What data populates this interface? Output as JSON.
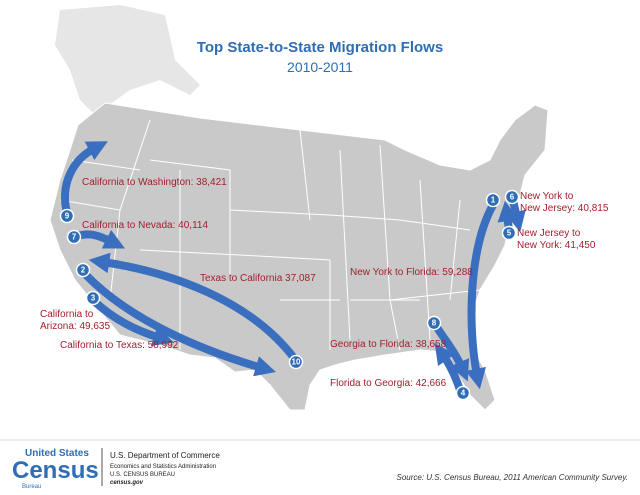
{
  "title": "Top State-to-State Migration Flows",
  "subtitle": "2010-2011",
  "flows": [
    {
      "rank": "1",
      "lines": [
        "New York to Florida: 59,288"
      ]
    },
    {
      "rank": "2",
      "lines": [
        "California to Texas: 58,992"
      ]
    },
    {
      "rank": "3",
      "lines": [
        "California to",
        "Arizona: 49,635"
      ]
    },
    {
      "rank": "4",
      "lines": [
        "Florida to Georgia: 42,666"
      ]
    },
    {
      "rank": "5",
      "lines": [
        "New Jersey to",
        "New York: 41,450"
      ]
    },
    {
      "rank": "6",
      "lines": [
        "New York to",
        "New Jersey: 40,815"
      ]
    },
    {
      "rank": "7",
      "lines": [
        "California to Nevada: 40,114"
      ]
    },
    {
      "rank": "8",
      "lines": [
        "Georgia to Florida: 38,658"
      ]
    },
    {
      "rank": "9",
      "lines": [
        "California to Washington: 38,421"
      ]
    },
    {
      "rank": "10",
      "lines": [
        "Texas to California 37,087"
      ]
    }
  ],
  "footer": {
    "logo": [
      "United States",
      "Census",
      "Bureau"
    ],
    "agency": [
      "U.S. Department of Commerce",
      "Economics and Statistics Administration",
      "U.S. CENSUS BUREAU",
      "census.gov"
    ],
    "source": "Source: U.S. Census Bureau, 2011 American Community Survey."
  }
}
